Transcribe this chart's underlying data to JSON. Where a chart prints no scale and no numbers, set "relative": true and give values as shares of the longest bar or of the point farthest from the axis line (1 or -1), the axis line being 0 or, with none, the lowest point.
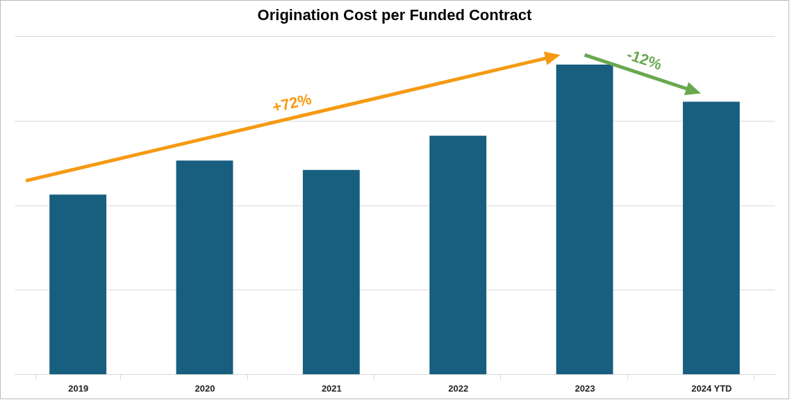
{
  "chart_data": {
    "type": "bar",
    "title": "Origination Cost per Funded Contract",
    "categories": [
      "2019",
      "2020",
      "2021",
      "2022",
      "2023",
      "2024 YTD"
    ],
    "values": [
      0.58,
      0.69,
      0.66,
      0.77,
      1,
      0.88
    ],
    "color": "#175e7f",
    "relative": true,
    "grid": "y",
    "annotations": [
      "+72%",
      "-12%"
    ]
  }
}
